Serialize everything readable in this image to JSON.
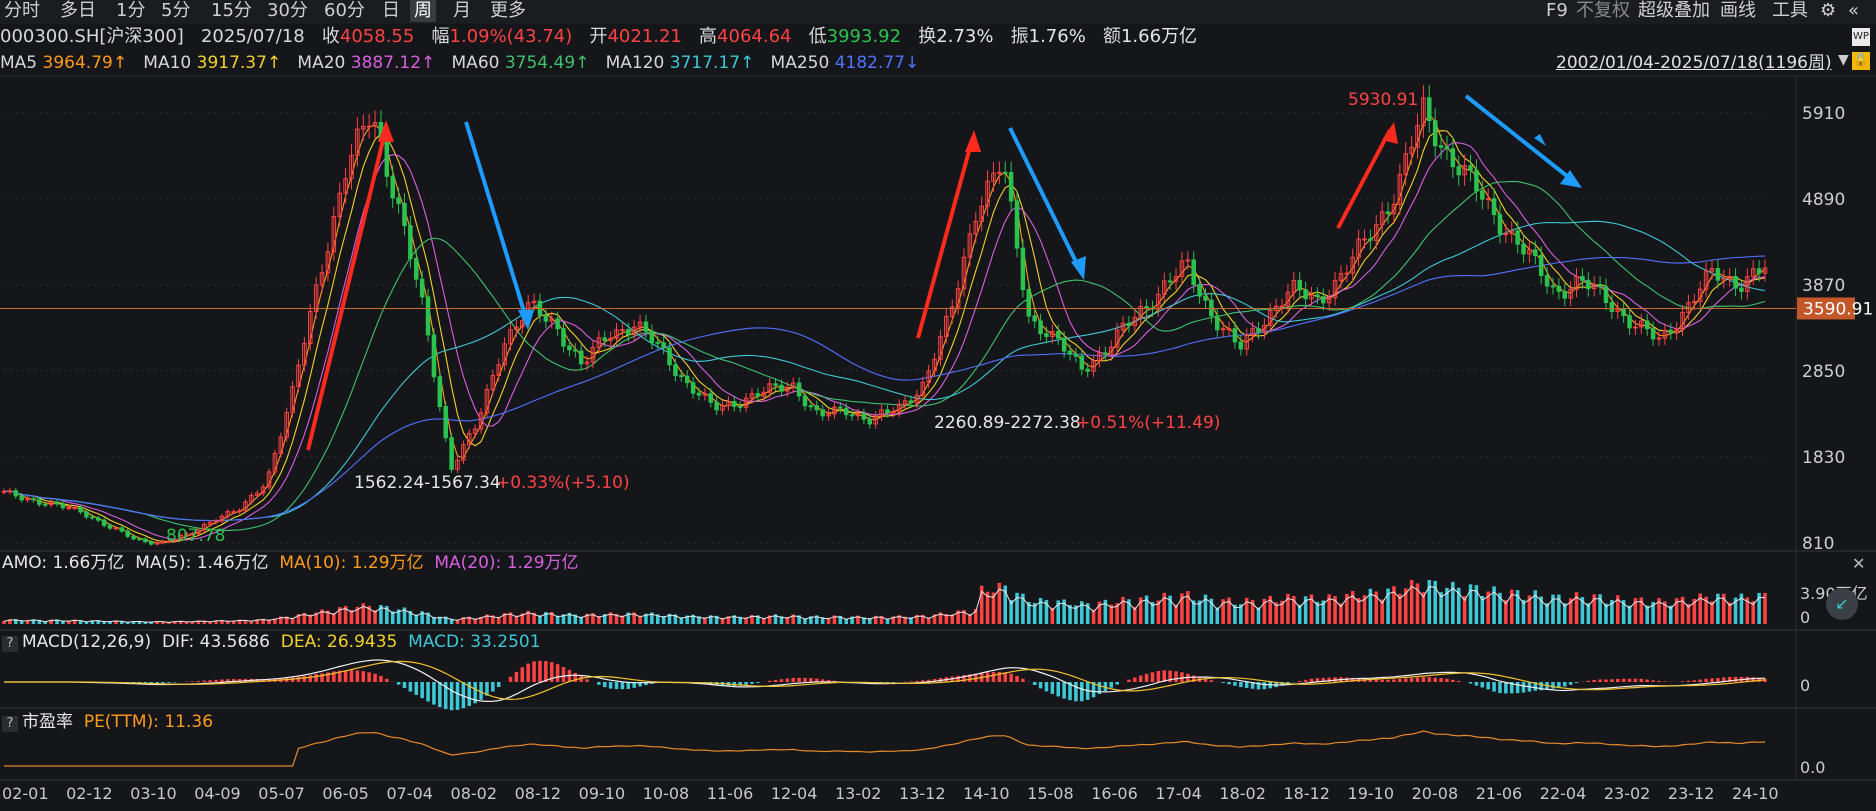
{
  "toolbar": {
    "periods": [
      "分时",
      "多日",
      "1分",
      "5分",
      "15分",
      "30分",
      "60分",
      "日",
      "周",
      "月",
      "更多"
    ],
    "active_period": "周",
    "right_tools": [
      "F9",
      "不复权",
      "超级叠加",
      "画线",
      "工具"
    ]
  },
  "quote": {
    "symbol": "000300.SH[沪深300]",
    "date": "2025/07/18",
    "close_label": "收",
    "close": "4058.55",
    "change_label": "幅",
    "change": "1.09%(43.74)",
    "open_label": "开",
    "open": "4021.21",
    "high_label": "高",
    "high": "4064.64",
    "low_label": "低",
    "low": "3993.92",
    "turnover_label": "换",
    "turnover": "2.73%",
    "amplitude_label": "振",
    "amplitude": "1.76%",
    "amount_label": "额",
    "amount": "1.66万亿"
  },
  "ma": {
    "ma5_label": "MA5",
    "ma5": "3964.79↑",
    "ma10_label": "MA10",
    "ma10": "3917.37↑",
    "ma20_label": "MA20",
    "ma20": "3887.12↑",
    "ma60_label": "MA60",
    "ma60": "3754.49↑",
    "ma120_label": "MA120",
    "ma120": "3717.17↑",
    "ma250_label": "MA250",
    "ma250": "4182.77↓"
  },
  "range": "2002/01/04-2025/07/18(1196周)",
  "colors": {
    "up": "#ff4343",
    "down": "#2bc24e",
    "ma5": "#ff9a1e",
    "ma10": "#f2d12c",
    "ma20": "#d85fe0",
    "ma60": "#3ec26e",
    "ma120": "#3ec8d6",
    "ma250": "#4f72ff",
    "arrow_up": "#ff2a1e",
    "arrow_down": "#1e9bff"
  },
  "annotations": {
    "peak": "5930.91",
    "low_1": "807.78",
    "box_1": "1562.24-1567.34",
    "box_1_chg": "+0.33%(+5.10)",
    "box_2": "2260.89-2272.38",
    "box_2_chg": "+0.51%(+11.49)",
    "price_line": "3590.91"
  },
  "amo_panel": {
    "amo_label": "AMO: 1.66万亿",
    "ma5": "MA(5): 1.46万亿",
    "ma10": "MA(10): 1.29万亿",
    "ma20": "MA(20): 1.29万亿",
    "axis": [
      "3.90万亿",
      "0"
    ]
  },
  "macd_panel": {
    "q": "?",
    "name": "MACD(12,26,9)",
    "dif": "DIF: 43.5686",
    "dea": "DEA: 26.9435",
    "macd": "MACD: 33.2501",
    "axis": [
      "0"
    ]
  },
  "pe_panel": {
    "q": "?",
    "name": "市盈率",
    "value": "PE(TTM): 11.36",
    "axis": [
      "0.0"
    ]
  },
  "chart_data": {
    "type": "line",
    "title": "000300.SH[沪深300]",
    "xlabel": "",
    "ylabel": "",
    "x_ticks": [
      "02-01",
      "02-12",
      "03-10",
      "04-09",
      "05-07",
      "06-05",
      "07-04",
      "08-02",
      "08-12",
      "09-10",
      "10-08",
      "11-06",
      "12-04",
      "13-02",
      "13-12",
      "14-10",
      "15-08",
      "16-06",
      "17-04",
      "18-02",
      "18-12",
      "19-10",
      "20-08",
      "21-06",
      "22-04",
      "23-02",
      "23-12",
      "24-10"
    ],
    "y_ticks": [
      5910,
      4890,
      3870,
      2850,
      1830,
      810
    ],
    "ylim": [
      750,
      6300
    ],
    "grid": false,
    "series": [
      {
        "values": [
          1400,
          1330,
          1250,
          1180,
          1000,
          850,
          810,
          900,
          1100,
          1200,
          1560,
          2600,
          4000,
          5200,
          5930,
          4800,
          3500,
          1700,
          2200,
          3200,
          3600,
          3400,
          2900,
          3300,
          3400,
          3100,
          2700,
          2400,
          2500,
          2600,
          2700,
          2300,
          2400,
          2260,
          2400,
          2700,
          3500,
          4800,
          5300,
          3500,
          3200,
          2900,
          3100,
          3500,
          3800,
          4100,
          3500,
          3100,
          3500,
          3800,
          3700,
          4000,
          4500,
          5000,
          5930,
          5400,
          5000,
          4600,
          4200,
          3800,
          3900,
          3700,
          3400,
          3200,
          3600,
          4000,
          3900,
          4058
        ]
      }
    ]
  }
}
